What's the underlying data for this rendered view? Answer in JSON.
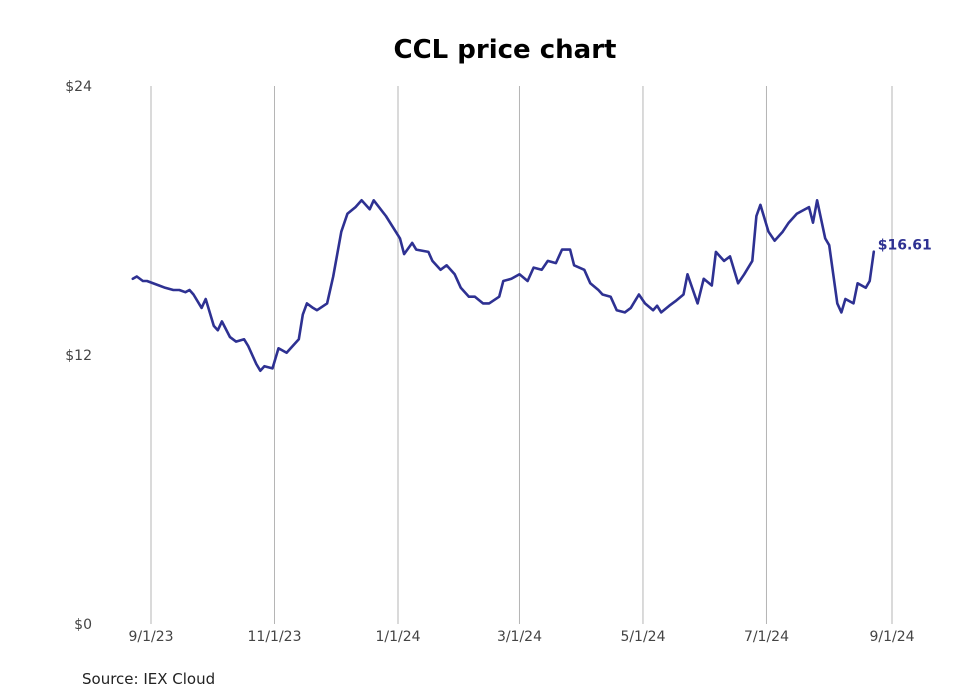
{
  "chart_data": {
    "type": "line",
    "title": "CCL price chart",
    "source": "Source: IEX Cloud",
    "ylim": [
      0,
      24
    ],
    "y_ticks": [
      {
        "value": 24,
        "label": "$24"
      },
      {
        "value": 12,
        "label": "$12"
      },
      {
        "value": 0,
        "label": "$0"
      }
    ],
    "x_ticks": [
      {
        "date": "2023-09-01",
        "label": "9/1/23"
      },
      {
        "date": "2023-11-01",
        "label": "11/1/23"
      },
      {
        "date": "2024-01-01",
        "label": "1/1/24"
      },
      {
        "date": "2024-03-01",
        "label": "3/1/24"
      },
      {
        "date": "2024-05-01",
        "label": "5/1/24"
      },
      {
        "date": "2024-07-01",
        "label": "7/1/24"
      },
      {
        "date": "2024-09-01",
        "label": "9/1/24"
      }
    ],
    "grid": "vertical",
    "line_color": "#2e3192",
    "last_value_label": "$16.61",
    "series": [
      {
        "points": [
          [
            "2023-08-23",
            15.4
          ],
          [
            "2023-08-25",
            15.5
          ],
          [
            "2023-08-28",
            15.3
          ],
          [
            "2023-08-30",
            15.3
          ],
          [
            "2023-09-05",
            15.1
          ],
          [
            "2023-09-08",
            15.0
          ],
          [
            "2023-09-12",
            14.9
          ],
          [
            "2023-09-15",
            14.9
          ],
          [
            "2023-09-18",
            14.8
          ],
          [
            "2023-09-20",
            14.9
          ],
          [
            "2023-09-22",
            14.7
          ],
          [
            "2023-09-26",
            14.1
          ],
          [
            "2023-09-28",
            14.5
          ],
          [
            "2023-10-02",
            13.3
          ],
          [
            "2023-10-04",
            13.1
          ],
          [
            "2023-10-06",
            13.5
          ],
          [
            "2023-10-10",
            12.8
          ],
          [
            "2023-10-13",
            12.6
          ],
          [
            "2023-10-17",
            12.7
          ],
          [
            "2023-10-19",
            12.4
          ],
          [
            "2023-10-23",
            11.6
          ],
          [
            "2023-10-25",
            11.3
          ],
          [
            "2023-10-27",
            11.5
          ],
          [
            "2023-10-31",
            11.4
          ],
          [
            "2023-11-03",
            12.3
          ],
          [
            "2023-11-07",
            12.1
          ],
          [
            "2023-11-10",
            12.4
          ],
          [
            "2023-11-13",
            12.7
          ],
          [
            "2023-11-15",
            13.8
          ],
          [
            "2023-11-17",
            14.3
          ],
          [
            "2023-11-20",
            14.1
          ],
          [
            "2023-11-22",
            14.0
          ],
          [
            "2023-11-27",
            14.3
          ],
          [
            "2023-11-30",
            15.5
          ],
          [
            "2023-12-04",
            17.5
          ],
          [
            "2023-12-07",
            18.3
          ],
          [
            "2023-12-11",
            18.6
          ],
          [
            "2023-12-14",
            18.9
          ],
          [
            "2023-12-18",
            18.5
          ],
          [
            "2023-12-20",
            18.9
          ],
          [
            "2023-12-26",
            18.2
          ],
          [
            "2024-01-02",
            17.2
          ],
          [
            "2024-01-04",
            16.5
          ],
          [
            "2024-01-08",
            17.0
          ],
          [
            "2024-01-10",
            16.7
          ],
          [
            "2024-01-16",
            16.6
          ],
          [
            "2024-01-18",
            16.2
          ],
          [
            "2024-01-22",
            15.8
          ],
          [
            "2024-01-25",
            16.0
          ],
          [
            "2024-01-29",
            15.6
          ],
          [
            "2024-02-01",
            15.0
          ],
          [
            "2024-02-05",
            14.6
          ],
          [
            "2024-02-08",
            14.6
          ],
          [
            "2024-02-12",
            14.3
          ],
          [
            "2024-02-15",
            14.3
          ],
          [
            "2024-02-20",
            14.6
          ],
          [
            "2024-02-22",
            15.3
          ],
          [
            "2024-02-26",
            15.4
          ],
          [
            "2024-03-01",
            15.6
          ],
          [
            "2024-03-05",
            15.3
          ],
          [
            "2024-03-08",
            15.9
          ],
          [
            "2024-03-12",
            15.8
          ],
          [
            "2024-03-15",
            16.2
          ],
          [
            "2024-03-19",
            16.1
          ],
          [
            "2024-03-22",
            16.7
          ],
          [
            "2024-03-26",
            16.7
          ],
          [
            "2024-03-28",
            16.0
          ],
          [
            "2024-04-02",
            15.8
          ],
          [
            "2024-04-05",
            15.2
          ],
          [
            "2024-04-09",
            14.9
          ],
          [
            "2024-04-11",
            14.7
          ],
          [
            "2024-04-15",
            14.6
          ],
          [
            "2024-04-18",
            14.0
          ],
          [
            "2024-04-22",
            13.9
          ],
          [
            "2024-04-25",
            14.1
          ],
          [
            "2024-04-29",
            14.7
          ],
          [
            "2024-05-02",
            14.3
          ],
          [
            "2024-05-06",
            14.0
          ],
          [
            "2024-05-08",
            14.2
          ],
          [
            "2024-05-10",
            13.9
          ],
          [
            "2024-05-14",
            14.2
          ],
          [
            "2024-05-17",
            14.4
          ],
          [
            "2024-05-21",
            14.7
          ],
          [
            "2024-05-23",
            15.6
          ],
          [
            "2024-05-28",
            14.3
          ],
          [
            "2024-05-31",
            15.4
          ],
          [
            "2024-06-04",
            15.1
          ],
          [
            "2024-06-06",
            16.6
          ],
          [
            "2024-06-10",
            16.2
          ],
          [
            "2024-06-13",
            16.4
          ],
          [
            "2024-06-17",
            15.2
          ],
          [
            "2024-06-20",
            15.6
          ],
          [
            "2024-06-24",
            16.2
          ],
          [
            "2024-06-26",
            18.2
          ],
          [
            "2024-06-28",
            18.7
          ],
          [
            "2024-07-02",
            17.5
          ],
          [
            "2024-07-05",
            17.1
          ],
          [
            "2024-07-09",
            17.5
          ],
          [
            "2024-07-12",
            17.9
          ],
          [
            "2024-07-16",
            18.3
          ],
          [
            "2024-07-18",
            18.4
          ],
          [
            "2024-07-22",
            18.6
          ],
          [
            "2024-07-24",
            17.9
          ],
          [
            "2024-07-26",
            18.9
          ],
          [
            "2024-07-30",
            17.2
          ],
          [
            "2024-08-01",
            16.9
          ],
          [
            "2024-08-05",
            14.3
          ],
          [
            "2024-08-07",
            13.9
          ],
          [
            "2024-08-09",
            14.5
          ],
          [
            "2024-08-13",
            14.3
          ],
          [
            "2024-08-15",
            15.2
          ],
          [
            "2024-08-19",
            15.0
          ],
          [
            "2024-08-21",
            15.3
          ],
          [
            "2024-08-23",
            16.61
          ]
        ]
      }
    ]
  }
}
